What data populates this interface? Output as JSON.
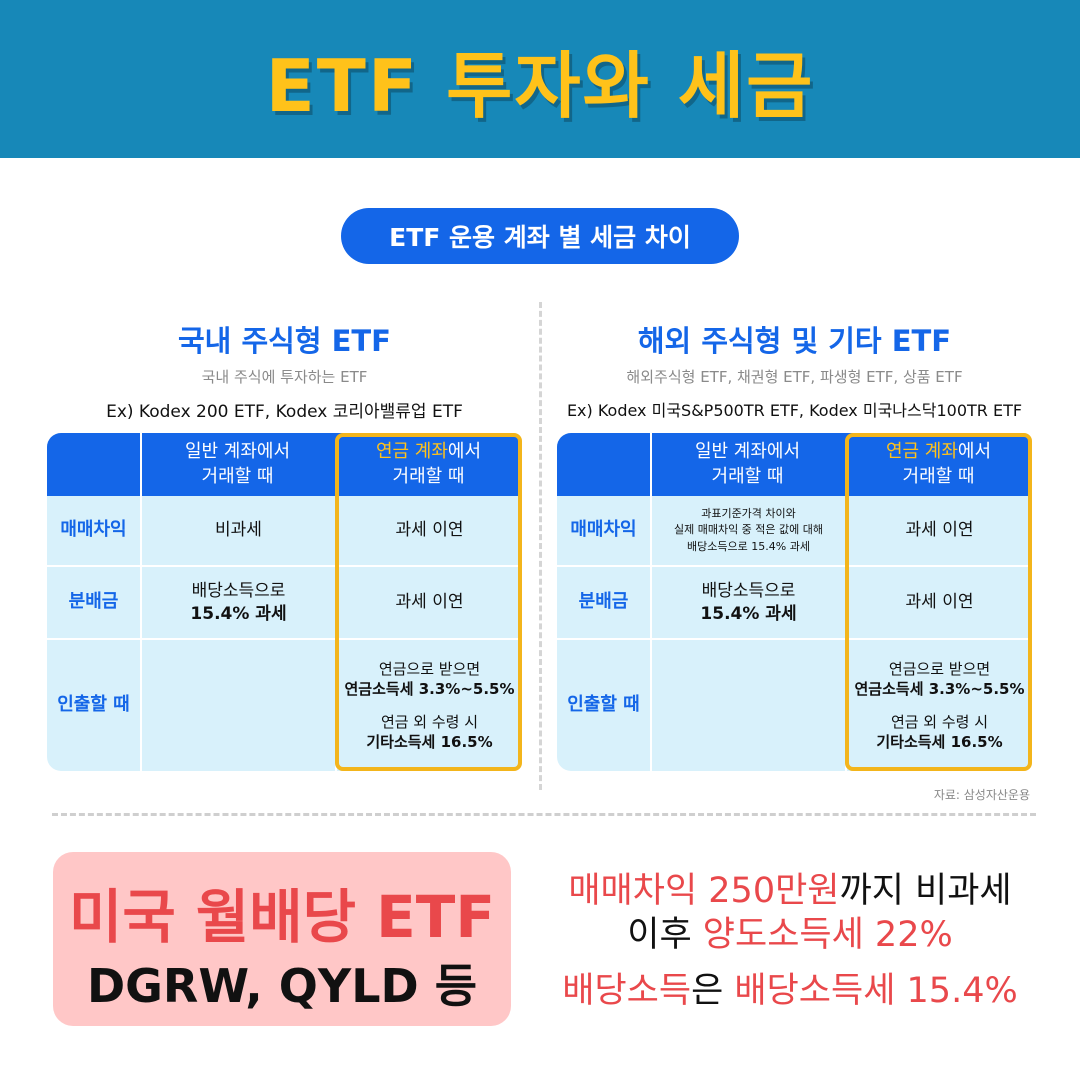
{
  "header": {
    "title": "ETF 투자와 세금"
  },
  "pill": {
    "label": "ETF 운용 계좌 별 세금 차이"
  },
  "columns": {
    "general": "일반 계좌에서",
    "general2": "거래할 때",
    "pension_hl": "연금 계좌",
    "pension_rest": "에서",
    "pension2": "거래할 때"
  },
  "rows": {
    "trade": "매매차익",
    "dist": "분배금",
    "withdraw": "인출할 때"
  },
  "domestic": {
    "title": "국내 주식형 ETF",
    "subtitle": "국내 주식에 투자하는 ETF",
    "example": "Ex) Kodex 200 ETF, Kodex 코리아밸류업 ETF",
    "trade_general": "비과세",
    "trade_pension": "과세 이연",
    "dist_general_1": "배당소득으로",
    "dist_general_2": "15.4% 과세",
    "dist_pension": "과세 이연",
    "withdraw_1": "연금으로 받으면",
    "withdraw_2": "연금소득세 3.3%~5.5%",
    "withdraw_3": "연금 외 수령 시",
    "withdraw_4": "기타소득세 16.5%"
  },
  "overseas": {
    "title": "해외 주식형 및 기타 ETF",
    "subtitle": "해외주식형 ETF, 채권형 ETF, 파생형 ETF, 상품 ETF",
    "example": "Ex) Kodex 미국S&P500TR ETF, Kodex 미국나스닥100TR ETF",
    "trade_general_1": "과표기준가격 차이와",
    "trade_general_2": "실제 매매차익 중 적은 값에 대해",
    "trade_general_3": "배당소득으로 15.4% 과세",
    "trade_pension": "과세 이연",
    "dist_general_1": "배당소득으로",
    "dist_general_2": "15.4% 과세",
    "dist_pension": "과세 이연",
    "withdraw_1": "연금으로 받으면",
    "withdraw_2": "연금소득세 3.3%~5.5%",
    "withdraw_3": "연금 외 수령 시",
    "withdraw_4": "기타소득세 16.5%"
  },
  "source": "자료: 삼성자산운용",
  "us_etf": {
    "title": "미국 월배당 ETF",
    "tickers": "DGRW, QYLD 등"
  },
  "us_tax": {
    "line1_red": "매매차익 250만원",
    "line1_rest": "까지 비과세",
    "line2_black": "이후 ",
    "line2_red": "양도소득세 22%",
    "line3_red1": "배당소득",
    "line3_black": "은 ",
    "line3_red2": "배당소득세 15.4%"
  },
  "colors": {
    "header_bg": "#1788b8",
    "header_text": "#ffc21a",
    "accent_blue": "#1466e8",
    "table_bg": "#d8f1fb",
    "pension_outline": "#f3b51b",
    "red": "#e9484b",
    "pink_box": "#ffc7c7"
  }
}
